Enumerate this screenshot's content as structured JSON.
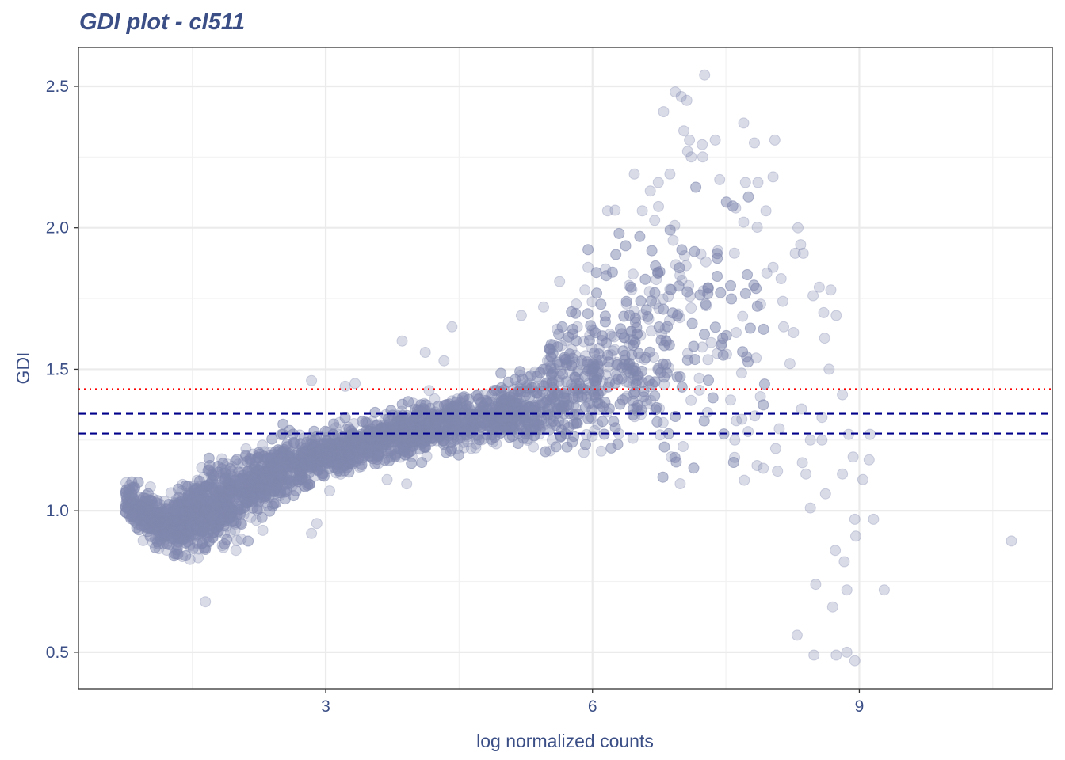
{
  "chart_data": {
    "type": "scatter",
    "title": "GDI plot - cl511",
    "xlabel": "log normalized counts",
    "ylabel": "GDI",
    "xlim": [
      0.22,
      11.17
    ],
    "ylim": [
      0.371,
      2.637
    ],
    "xticks": [
      3,
      6,
      9
    ],
    "xtick_labels": [
      "3",
      "6",
      "9"
    ],
    "yticks": [
      0.5,
      1.0,
      1.5,
      2.0,
      2.5
    ],
    "ytick_labels": [
      "0.5",
      "1.0",
      "1.5",
      "2.0",
      "2.5"
    ],
    "grid": true,
    "point_color": "#8089B0",
    "point_alpha": 0.3,
    "reference_lines": [
      {
        "y": 1.43,
        "color": "#FF0000",
        "style": "dotted"
      },
      {
        "y": 1.343,
        "color": "#00008B",
        "style": "dashed"
      },
      {
        "y": 1.273,
        "color": "#00008B",
        "style": "dashed"
      }
    ],
    "dense_cloud": {
      "approx_points": 4500,
      "trend_x": [
        0.75,
        1.0,
        1.3,
        1.6,
        2.0,
        2.5,
        3.0,
        4.0,
        5.0,
        6.0,
        6.5,
        7.0,
        7.5,
        8.0
      ],
      "trend_y": [
        1.04,
        0.98,
        0.94,
        1.0,
        1.07,
        1.14,
        1.2,
        1.28,
        1.34,
        1.42,
        1.47,
        1.52,
        1.55,
        1.5
      ],
      "trend_sd": [
        0.03,
        0.035,
        0.05,
        0.07,
        0.06,
        0.05,
        0.04,
        0.04,
        0.05,
        0.1,
        0.15,
        0.2,
        0.22,
        0.25
      ],
      "density": [
        1.0,
        1.2,
        1.5,
        1.6,
        1.5,
        1.3,
        1.1,
        1.0,
        0.9,
        0.8,
        0.55,
        0.35,
        0.2,
        0.1
      ]
    },
    "outliers": [
      [
        10.71,
        0.893
      ],
      [
        9.28,
        0.72
      ],
      [
        9.16,
        0.97
      ],
      [
        9.04,
        1.11
      ],
      [
        8.96,
        0.91
      ],
      [
        8.95,
        0.97
      ],
      [
        8.86,
        0.72
      ],
      [
        8.83,
        0.82
      ],
      [
        8.73,
        0.86
      ],
      [
        8.7,
        0.66
      ],
      [
        8.86,
        0.5
      ],
      [
        8.74,
        0.49
      ],
      [
        8.95,
        0.47
      ],
      [
        8.49,
        0.49
      ],
      [
        8.3,
        0.56
      ],
      [
        8.51,
        0.74
      ],
      [
        8.62,
        1.06
      ],
      [
        8.45,
        1.01
      ],
      [
        9.11,
        1.18
      ],
      [
        9.12,
        1.27
      ],
      [
        8.81,
        1.13
      ],
      [
        8.93,
        1.19
      ],
      [
        8.4,
        1.13
      ],
      [
        8.36,
        1.17
      ],
      [
        8.45,
        1.25
      ],
      [
        8.58,
        1.25
      ],
      [
        8.88,
        1.27
      ],
      [
        8.58,
        1.33
      ],
      [
        8.35,
        1.36
      ],
      [
        7.26,
        2.54
      ],
      [
        6.93,
        2.48
      ],
      [
        7.06,
        2.45
      ],
      [
        6.8,
        2.41
      ],
      [
        7.7,
        2.37
      ],
      [
        8.05,
        2.31
      ],
      [
        7.38,
        2.31
      ],
      [
        7.82,
        2.3
      ],
      [
        7.09,
        2.31
      ],
      [
        7.07,
        2.27
      ],
      [
        7.11,
        2.25
      ],
      [
        8.03,
        2.18
      ],
      [
        6.47,
        2.19
      ],
      [
        7.43,
        2.17
      ],
      [
        7.72,
        2.16
      ],
      [
        7.86,
        2.16
      ],
      [
        7.24,
        2.25
      ],
      [
        7.61,
        2.07
      ],
      [
        7.95,
        2.06
      ],
      [
        7.7,
        2.02
      ],
      [
        8.31,
        2.0
      ],
      [
        8.68,
        1.78
      ],
      [
        8.81,
        1.41
      ],
      [
        8.66,
        1.5
      ],
      [
        8.61,
        1.61
      ],
      [
        8.34,
        1.94
      ],
      [
        8.37,
        1.91
      ],
      [
        8.28,
        1.91
      ],
      [
        8.55,
        1.79
      ],
      [
        8.48,
        1.76
      ],
      [
        8.12,
        1.82
      ],
      [
        8.14,
        1.74
      ],
      [
        8.03,
        1.86
      ],
      [
        7.96,
        1.84
      ],
      [
        7.89,
        1.73
      ],
      [
        8.26,
        1.63
      ],
      [
        8.22,
        1.52
      ],
      [
        8.6,
        1.7
      ],
      [
        8.74,
        1.69
      ],
      [
        8.15,
        1.65
      ],
      [
        7.6,
        1.25
      ],
      [
        7.85,
        1.16
      ],
      [
        7.92,
        1.15
      ],
      [
        8.06,
        1.22
      ],
      [
        8.08,
        1.14
      ],
      [
        8.1,
        1.29
      ],
      [
        7.75,
        1.28
      ],
      [
        2.84,
        1.46
      ],
      [
        3.86,
        1.6
      ],
      [
        4.42,
        1.65
      ],
      [
        2.84,
        0.92
      ],
      [
        2.9,
        0.955
      ],
      [
        3.91,
        1.095
      ],
      [
        3.69,
        1.11
      ],
      [
        1.99,
        0.86
      ],
      [
        1.85,
        0.87
      ],
      [
        2.05,
        0.9
      ],
      [
        3.22,
        1.44
      ],
      [
        3.33,
        1.45
      ],
      [
        4.12,
        1.56
      ],
      [
        4.33,
        1.53
      ],
      [
        5.63,
        1.81
      ],
      [
        5.95,
        1.86
      ],
      [
        6.17,
        2.06
      ],
      [
        6.56,
        2.06
      ],
      [
        6.65,
        2.13
      ],
      [
        6.74,
        2.16
      ],
      [
        6.87,
        2.19
      ],
      [
        5.2,
        1.69
      ],
      [
        5.45,
        1.72
      ]
    ]
  }
}
